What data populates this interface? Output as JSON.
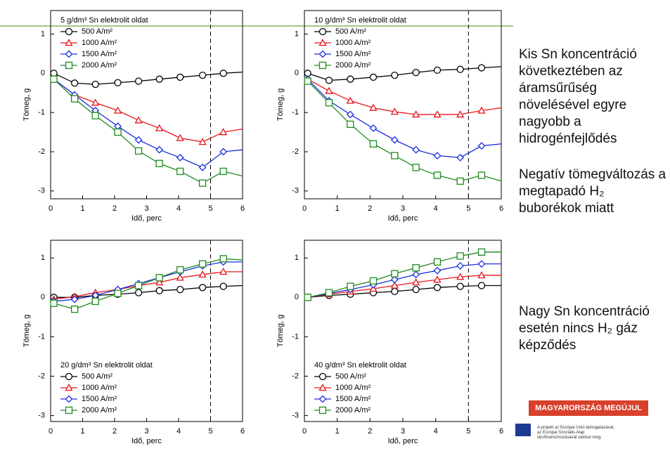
{
  "chart_data": [
    {
      "type": "line",
      "legend_title": "5 g/dm³ Sn elektrolit oldat",
      "xlabel": "Idő, perc",
      "ylabel": "Tömeg, g",
      "x": [
        0.1,
        0.75,
        1.4,
        2.1,
        2.75,
        3.4,
        4.05,
        4.75,
        5.4,
        6
      ],
      "series": [
        {
          "name": "500 A/m²",
          "color": "#000000",
          "marker": "circle",
          "values": [
            0,
            -0.25,
            -0.28,
            -0.24,
            -0.2,
            -0.15,
            -0.1,
            -0.05,
            0.0,
            0.03
          ]
        },
        {
          "name": "1000 A/m²",
          "color": "#e8141b",
          "marker": "triangle",
          "values": [
            -0.15,
            -0.55,
            -0.75,
            -0.95,
            -1.2,
            -1.4,
            -1.65,
            -1.75,
            -1.5,
            -1.42
          ]
        },
        {
          "name": "1500 A/m²",
          "color": "#1a2fe0",
          "marker": "diamond",
          "values": [
            -0.15,
            -0.55,
            -0.95,
            -1.35,
            -1.7,
            -1.95,
            -2.15,
            -2.4,
            -2.0,
            -1.95
          ]
        },
        {
          "name": "2000 A/m²",
          "color": "#1e8a1e",
          "marker": "square",
          "values": [
            -0.15,
            -0.65,
            -1.08,
            -1.5,
            -1.98,
            -2.3,
            -2.5,
            -2.8,
            -2.5,
            -2.62
          ]
        }
      ],
      "xlim": [
        0,
        6
      ],
      "xticks": [
        0,
        1,
        2,
        3,
        4,
        5,
        6
      ],
      "ylim": [
        -3.2,
        1.6
      ],
      "yticks": [
        -3,
        -2,
        -1,
        0,
        1
      ],
      "vline": 5,
      "legend": "upper left"
    },
    {
      "type": "line",
      "legend_title": "10 g/dm³ Sn elektrolit oldat",
      "xlabel": "Idő, perc",
      "ylabel": "Tömeg, g",
      "x": [
        0.1,
        0.75,
        1.4,
        2.1,
        2.75,
        3.4,
        4.05,
        4.75,
        5.4,
        6
      ],
      "series": [
        {
          "name": "500 A/m²",
          "color": "#000000",
          "marker": "circle",
          "values": [
            0,
            -0.18,
            -0.15,
            -0.1,
            -0.05,
            0.02,
            0.08,
            0.1,
            0.14,
            0.17
          ]
        },
        {
          "name": "1000 A/m²",
          "color": "#e8141b",
          "marker": "triangle",
          "values": [
            -0.15,
            -0.45,
            -0.7,
            -0.88,
            -0.98,
            -1.05,
            -1.05,
            -1.05,
            -0.95,
            -0.88
          ]
        },
        {
          "name": "1500 A/m²",
          "color": "#1a2fe0",
          "marker": "diamond",
          "values": [
            -0.15,
            -0.7,
            -1.05,
            -1.4,
            -1.7,
            -1.95,
            -2.1,
            -2.15,
            -1.85,
            -1.8
          ]
        },
        {
          "name": "2000 A/m²",
          "color": "#1e8a1e",
          "marker": "square",
          "values": [
            -0.2,
            -0.75,
            -1.3,
            -1.8,
            -2.1,
            -2.4,
            -2.6,
            -2.75,
            -2.6,
            -2.75
          ]
        }
      ],
      "xlim": [
        0,
        6
      ],
      "xticks": [
        0,
        1,
        2,
        3,
        4,
        5,
        6
      ],
      "ylim": [
        -3.2,
        1.6
      ],
      "yticks": [
        -3,
        -2,
        -1,
        0,
        1
      ],
      "vline": 5,
      "legend": "upper left"
    },
    {
      "type": "line",
      "legend_title": "20 g/dm³ Sn elektrolit oldat",
      "xlabel": "Idő, perc",
      "ylabel": "Tömeg, g",
      "x": [
        0.1,
        0.75,
        1.4,
        2.1,
        2.75,
        3.4,
        4.05,
        4.75,
        5.4,
        6
      ],
      "series": [
        {
          "name": "500 A/m²",
          "color": "#000000",
          "marker": "circle",
          "values": [
            0,
            0,
            0.05,
            0.08,
            0.12,
            0.17,
            0.2,
            0.25,
            0.28,
            0.3
          ]
        },
        {
          "name": "1000 A/m²",
          "color": "#e8141b",
          "marker": "triangle",
          "values": [
            -0.05,
            0.02,
            0.12,
            0.2,
            0.3,
            0.38,
            0.5,
            0.58,
            0.65,
            0.65
          ]
        },
        {
          "name": "1500 A/m²",
          "color": "#1a2fe0",
          "marker": "diamond",
          "values": [
            -0.1,
            -0.05,
            0.05,
            0.2,
            0.35,
            0.5,
            0.65,
            0.8,
            0.9,
            0.9
          ]
        },
        {
          "name": "2000 A/m²",
          "color": "#1e8a1e",
          "marker": "square",
          "values": [
            -0.15,
            -0.3,
            -0.1,
            0.1,
            0.3,
            0.5,
            0.7,
            0.85,
            0.98,
            0.95
          ]
        }
      ],
      "xlim": [
        0,
        6
      ],
      "xticks": [
        0,
        1,
        2,
        3,
        4,
        5,
        6
      ],
      "ylim": [
        -3.15,
        1.45
      ],
      "yticks": [
        -3,
        -2,
        -1,
        0,
        1
      ],
      "vline": 5,
      "legend": "lower left"
    },
    {
      "type": "line",
      "legend_title": "40 g/dm³ Sn elektrolit oldat",
      "xlabel": "Idő, perc",
      "ylabel": "Tömeg, g",
      "x": [
        0.1,
        0.75,
        1.4,
        2.1,
        2.75,
        3.4,
        4.05,
        4.75,
        5.4,
        6
      ],
      "series": [
        {
          "name": "500 A/m²",
          "color": "#000000",
          "marker": "circle",
          "values": [
            0,
            0.05,
            0.08,
            0.12,
            0.15,
            0.2,
            0.25,
            0.28,
            0.3,
            0.3
          ]
        },
        {
          "name": "1000 A/m²",
          "color": "#e8141b",
          "marker": "triangle",
          "values": [
            0,
            0.08,
            0.15,
            0.22,
            0.3,
            0.38,
            0.45,
            0.52,
            0.56,
            0.56
          ]
        },
        {
          "name": "1500 A/m²",
          "color": "#1a2fe0",
          "marker": "diamond",
          "values": [
            0,
            0.1,
            0.2,
            0.32,
            0.45,
            0.58,
            0.68,
            0.8,
            0.85,
            0.85
          ]
        },
        {
          "name": "2000 A/m²",
          "color": "#1e8a1e",
          "marker": "square",
          "values": [
            0,
            0.12,
            0.28,
            0.42,
            0.6,
            0.75,
            0.9,
            1.05,
            1.15,
            1.15
          ]
        }
      ],
      "xlim": [
        0,
        6
      ],
      "xticks": [
        0,
        1,
        2,
        3,
        4,
        5,
        6
      ],
      "ylim": [
        -3.15,
        1.45
      ],
      "yticks": [
        -3,
        -2,
        -1,
        0,
        1
      ],
      "vline": 5,
      "legend": "lower left"
    }
  ],
  "side_text": [
    "Kis Sn koncentráció következtében az áramsűrűség növelésével egyre nagyobb a hidrogénfejlődés",
    "Negatív tömegváltozás a megtapadó H₂ buborékok miatt",
    "Nagy Sn koncentráció esetén nincs H₂ gáz képződés"
  ],
  "footer": {
    "banner": "MAGYARORSZÁG MEGÚJUL",
    "lines": [
      "A projekt az Európai Unió támogatásával,",
      "az Európai Szociális Alap",
      "társfinanszírozásával valósul meg."
    ]
  }
}
